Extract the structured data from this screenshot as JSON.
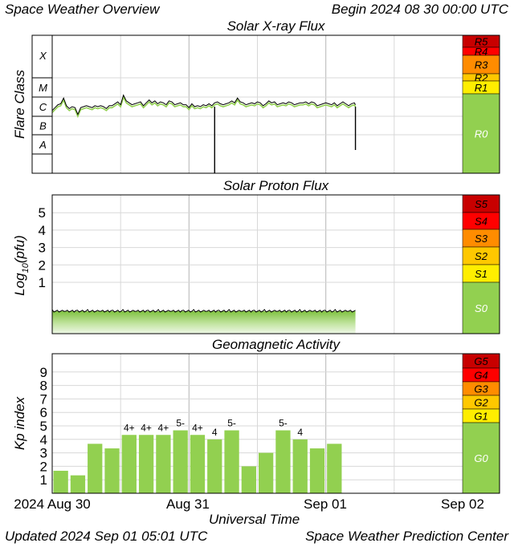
{
  "header": {
    "title": "Space Weather Overview",
    "begin": "Begin 2024 08 30 00:00 UTC"
  },
  "footer": {
    "updated": "Updated 2024 Sep 01 05:01 UTC",
    "source": "Space Weather Prediction Center"
  },
  "xaxis": {
    "label": "Universal Time",
    "ticks": [
      "2024 Aug 30",
      "Aug 31",
      "Sep 01",
      "Sep 02"
    ]
  },
  "colors": {
    "r5": "#c80000",
    "r4": "#ff0000",
    "r3": "#ff8c00",
    "r2": "#ffc800",
    "r1": "#ffee00",
    "r0": "#92d050",
    "bar": "#92d050",
    "line": "#000000",
    "fill": "#92d050",
    "grid": "#d8d8d8"
  },
  "chart_data": [
    {
      "type": "line",
      "title": "Solar X-ray Flux",
      "ylabel": "Flare Class",
      "xlim_hours": [
        0,
        72
      ],
      "class_labels": [
        "A",
        "B",
        "C",
        "M",
        "X"
      ],
      "ylim_log": [
        -8.9,
        -2.8
      ],
      "series": [
        {
          "x_hours": [
            0,
            0.5,
            1,
            1.5,
            2,
            2.5,
            3,
            3.5,
            4,
            4.5,
            5,
            5.5,
            6,
            6.5,
            7,
            7.5,
            8,
            8.5,
            9,
            9.5,
            10,
            10.5,
            11,
            11.5,
            12,
            12.5,
            13,
            13.5,
            14,
            14.5,
            15,
            15.5,
            16,
            16.5,
            17,
            17.5,
            18,
            18.5,
            19,
            19.5,
            20,
            20.5,
            21,
            21.5,
            22,
            22.5,
            23,
            23.5,
            24,
            24.5,
            25,
            25.5,
            26,
            26.5,
            27,
            27.5,
            28,
            28.5,
            29,
            29.5,
            30,
            30.5,
            31,
            31.5,
            32,
            32.5,
            33,
            33.5,
            34,
            34.5,
            35,
            35.5,
            36,
            36.5,
            37,
            37.5,
            38,
            38.5,
            39,
            39.5,
            40,
            40.5,
            41,
            41.5,
            42,
            42.5,
            43,
            43.5,
            44,
            44.5,
            45,
            45.5,
            46,
            46.5,
            47,
            47.5,
            48,
            48.5,
            49,
            49.5,
            50,
            50.5,
            51,
            51.5,
            52,
            52.5,
            53,
            53.2
          ],
          "log_flux": [
            -5.7,
            -5.55,
            -5.4,
            -5.35,
            -5.05,
            -5.45,
            -5.6,
            -5.5,
            -5.55,
            -5.9,
            -5.55,
            -5.5,
            -5.45,
            -5.5,
            -5.55,
            -5.45,
            -5.5,
            -5.45,
            -5.5,
            -5.6,
            -5.45,
            -5.45,
            -5.35,
            -5.25,
            -5.4,
            -4.9,
            -5.2,
            -5.3,
            -5.4,
            -5.35,
            -5.3,
            -5.25,
            -5.45,
            -5.3,
            -5.15,
            -5.3,
            -5.2,
            -5.35,
            -5.25,
            -5.3,
            -5.4,
            -5.2,
            -5.25,
            -5.4,
            -5.35,
            -5.3,
            -5.4,
            -5.4,
            -5.55,
            -5.35,
            -5.5,
            -5.45,
            -5.5,
            -5.4,
            -5.45,
            -5.35,
            -5.45,
            -5.3,
            -5.25,
            -5.35,
            -5.4,
            -5.35,
            -5.3,
            -5.2,
            -5.3,
            -5.05,
            -5.25,
            -5.3,
            -5.4,
            -5.35,
            -5.3,
            -5.35,
            -5.25,
            -5.3,
            -5.45,
            -5.35,
            -5.2,
            -5.3,
            -5.25,
            -5.4,
            -5.35,
            -5.3,
            -5.35,
            -5.25,
            -5.3,
            -5.4,
            -5.35,
            -5.3,
            -5.3,
            -5.25,
            -5.35,
            -5.25,
            -5.3,
            -5.45,
            -5.4,
            -5.35,
            -5.3,
            -5.35,
            -5.4,
            -5.3,
            -5.45,
            -5.35,
            -5.25,
            -5.35,
            -5.45,
            -5.35,
            -5.3,
            -5.4
          ],
          "dropouts": [
            [
              28.5,
              -8.9
            ],
            [
              53.2,
              -6.8
            ]
          ]
        }
      ],
      "scale_labels": [
        "R5",
        "R4",
        "R3",
        "R2",
        "R1",
        "R0"
      ]
    },
    {
      "type": "area",
      "title": "Solar Proton Flux",
      "ylabel_prefix": "Log",
      "ylabel_sub": "10",
      "ylabel_suffix": "(pfu)",
      "ylim": [
        -1.5,
        6
      ],
      "y_ticks": [
        "1",
        "2",
        "3",
        "4",
        "5"
      ],
      "x_hours": [
        0,
        53.2
      ],
      "baseline_log": -0.95,
      "scale_labels": [
        "S5",
        "S4",
        "S3",
        "S2",
        "S1",
        "S0"
      ]
    },
    {
      "type": "bar",
      "title": "Geomagnetic Activity",
      "ylabel": "Kp index",
      "ylim": [
        0,
        9.8
      ],
      "y_ticks": [
        "1",
        "2",
        "3",
        "4",
        "5",
        "6",
        "7",
        "8",
        "9"
      ],
      "bar_hours": 3,
      "values": [
        1.67,
        1.33,
        3.67,
        3.33,
        4.33,
        4.33,
        4.33,
        4.67,
        4.33,
        4.0,
        4.67,
        2.0,
        3.0,
        4.67,
        4.0,
        3.33,
        3.67
      ],
      "labels": [
        "",
        "",
        "",
        "",
        "4+",
        "4+",
        "4+",
        "5-",
        "4+",
        "4",
        "5-",
        "",
        "",
        "5-",
        "4",
        "",
        ""
      ],
      "scale_labels": [
        "G5",
        "G4",
        "G3",
        "G2",
        "G1",
        "G0"
      ]
    }
  ]
}
